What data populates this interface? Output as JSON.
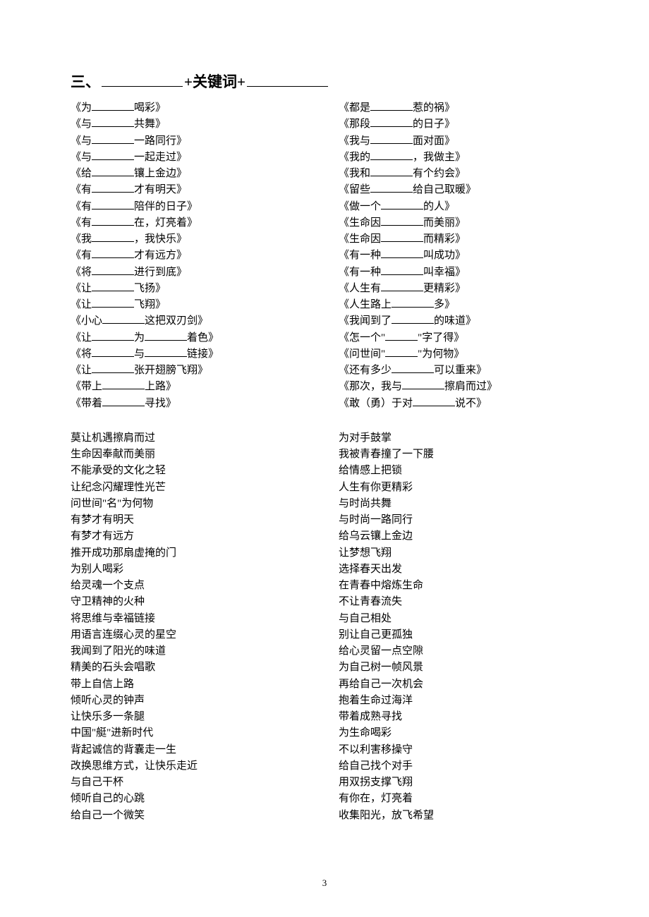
{
  "heading": {
    "prefix": "三、",
    "mid": "+关键词+"
  },
  "templates_left": [
    "《为______喝彩》",
    "《与______共舞》",
    "《与______一路同行》",
    "《与______一起走过》",
    "《给______镶上金边》",
    "《有______才有明天》",
    "《有______陪伴的日子》",
    "《有______在，灯亮着》",
    "《我______，我快乐》",
    "《有______才有远方》",
    "《将______进行到底》",
    "《让______飞扬》",
    "《让______飞翔》",
    "《小心______这把双刃剑》",
    "《让______为______着色》",
    "《将______与______链接》",
    "《让______张开翅膀飞翔》",
    "《带上______上路》",
    "《带着______寻找》"
  ],
  "templates_right": [
    "《都是______惹的祸》",
    "《那段______的日子》",
    "《我与______面对面》",
    "《我的______，我做主》",
    "《我和______有个约会》",
    "《留些______给自己取暖》",
    "《做一个______的人》",
    "《生命因______而美丽》",
    "《生命因______而精彩》",
    "《有一种______叫成功》",
    "《有一种______叫幸福》",
    "《人生有______更精彩》",
    "《人生路上______多》",
    "《我闻到了______的味道》",
    "《怎一个\"_____\"字了得》",
    "《问世间\"_____\"为何物》",
    "《还有多少______可以重来》",
    "《那次，我与______擦肩而过》",
    "《敢（勇）于对______说不》"
  ],
  "examples_left": [
    "莫让机遇擦肩而过",
    "生命因奉献而美丽",
    "不能承受的文化之轻",
    "让纪念闪耀理性光芒",
    "问世间\"名\"为何物",
    "有梦才有明天",
    "有梦才有远方",
    "推开成功那扇虚掩的门",
    "为别人喝彩",
    "给灵魂一个支点",
    "守卫精神的火种",
    "将思维与幸福链接",
    "用语言连缀心灵的星空",
    "我闻到了阳光的味道",
    "精美的石头会唱歌",
    "带上自信上路",
    "倾听心灵的钟声",
    "让快乐多一条腿",
    "中国\"艇\"进新时代",
    "背起诚信的背囊走一生",
    "改换思维方式，让快乐走近",
    "与自己干杯",
    "倾听自己的心跳",
    "给自己一个微笑"
  ],
  "examples_right": [
    "为对手鼓掌",
    "我被青春撞了一下腰",
    "给情感上把锁",
    "人生有你更精彩",
    "与时尚共舞",
    "与时尚一路同行",
    "给乌云镶上金边",
    "让梦想飞翔",
    "选择春天出发",
    "在青春中熔炼生命",
    "不让青春流失",
    "与自己相处",
    "别让自己更孤独",
    "给心灵留一点空隙",
    "为自己树一帧风景",
    "再给自己一次机会",
    "抱着生命过海洋",
    "带着成熟寻找",
    "为生命喝彩",
    "不以利害移操守",
    "给自己找个对手",
    "用双拐支撑飞翔",
    "有你在，灯亮着",
    "收集阳光，放飞希望"
  ],
  "page_num": "3"
}
